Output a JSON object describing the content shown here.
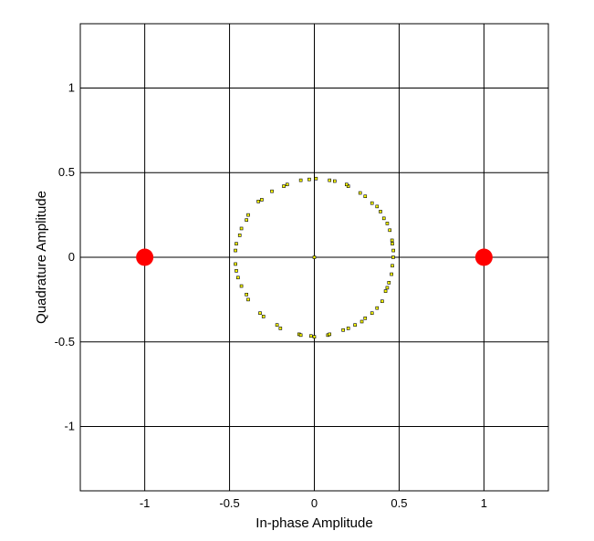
{
  "chart_data": {
    "type": "scatter",
    "title": "",
    "xlabel": "In-phase Amplitude",
    "ylabel": "Quadrature Amplitude",
    "xlim": [
      -1.38,
      1.38
    ],
    "ylim": [
      -1.38,
      1.38
    ],
    "x_ticks": [
      -1,
      -0.5,
      0,
      0.5,
      1
    ],
    "x_tick_labels": [
      "-1",
      "-0.5",
      "0",
      "0.5",
      "1"
    ],
    "y_ticks": [
      -1,
      -0.5,
      0,
      0.5,
      1
    ],
    "y_tick_labels": [
      "-1",
      "-0.5",
      "0",
      "0.5",
      "1"
    ],
    "grid": true,
    "series": [
      {
        "marker_color": "#ffff00",
        "marker_edge": "#000000",
        "points": [
          [
            0.465,
            0.0
          ],
          [
            0.466,
            0.04
          ],
          [
            0.46,
            0.08
          ],
          [
            0.458,
            0.1
          ],
          [
            0.445,
            0.16
          ],
          [
            0.43,
            0.2
          ],
          [
            0.41,
            0.23
          ],
          [
            0.39,
            0.27
          ],
          [
            0.37,
            0.3
          ],
          [
            0.34,
            0.32
          ],
          [
            0.3,
            0.36
          ],
          [
            0.27,
            0.38
          ],
          [
            0.2,
            0.42
          ],
          [
            0.19,
            0.43
          ],
          [
            0.12,
            0.45
          ],
          [
            0.09,
            0.455
          ],
          [
            0.01,
            0.465
          ],
          [
            -0.03,
            0.46
          ],
          [
            -0.08,
            0.455
          ],
          [
            -0.16,
            0.43
          ],
          [
            -0.18,
            0.42
          ],
          [
            -0.25,
            0.39
          ],
          [
            -0.31,
            0.34
          ],
          [
            -0.33,
            0.33
          ],
          [
            -0.39,
            0.25
          ],
          [
            -0.4,
            0.22
          ],
          [
            -0.43,
            0.17
          ],
          [
            -0.44,
            0.13
          ],
          [
            -0.46,
            0.08
          ],
          [
            -0.465,
            0.04
          ],
          [
            -0.465,
            -0.04
          ],
          [
            -0.46,
            -0.08
          ],
          [
            -0.45,
            -0.12
          ],
          [
            -0.43,
            -0.17
          ],
          [
            -0.4,
            -0.22
          ],
          [
            -0.39,
            -0.25
          ],
          [
            -0.32,
            -0.33
          ],
          [
            -0.3,
            -0.35
          ],
          [
            -0.22,
            -0.4
          ],
          [
            -0.2,
            -0.42
          ],
          [
            -0.09,
            -0.455
          ],
          [
            -0.08,
            -0.46
          ],
          [
            -0.02,
            -0.465
          ],
          [
            0.0,
            -0.47
          ],
          [
            0.08,
            -0.46
          ],
          [
            0.09,
            -0.455
          ],
          [
            0.17,
            -0.43
          ],
          [
            0.2,
            -0.42
          ],
          [
            0.24,
            -0.4
          ],
          [
            0.28,
            -0.38
          ],
          [
            0.3,
            -0.36
          ],
          [
            0.34,
            -0.33
          ],
          [
            0.37,
            -0.3
          ],
          [
            0.4,
            -0.26
          ],
          [
            0.42,
            -0.2
          ],
          [
            0.43,
            -0.18
          ],
          [
            0.44,
            -0.15
          ],
          [
            0.455,
            -0.1
          ],
          [
            0.46,
            -0.05
          ],
          [
            0.0,
            0.0
          ]
        ]
      },
      {
        "marker_color": "#ff0000",
        "points": [
          [
            -1,
            0
          ],
          [
            1,
            0
          ]
        ]
      }
    ]
  }
}
